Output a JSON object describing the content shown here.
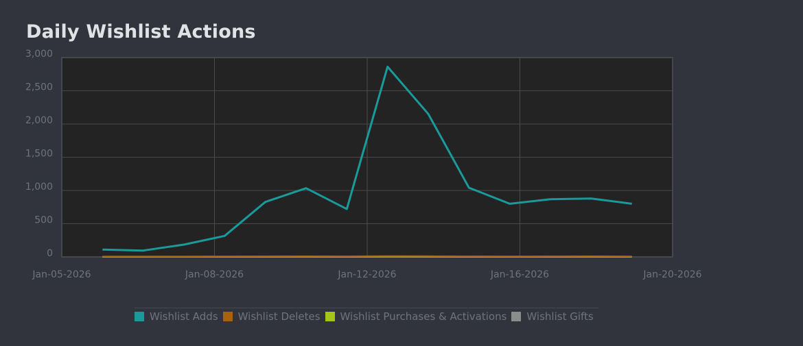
{
  "title": "Daily Wishlist Actions",
  "chart_data": {
    "type": "line",
    "title": "Daily Wishlist Actions",
    "xlabel": "",
    "ylabel": "",
    "x_range": [
      "2026-01-05",
      "2026-01-20"
    ],
    "x_tick_labels": [
      "Jan-05-2026",
      "Jan-08-2026",
      "Jan-12-2026",
      "Jan-16-2026",
      "Jan-20-2026"
    ],
    "ylim": [
      0,
      3000
    ],
    "y_ticks": [
      0,
      500,
      1000,
      1500,
      2000,
      2500,
      3000
    ],
    "y_tick_labels": [
      "0",
      "500",
      "1,000",
      "1,500",
      "2,000",
      "2,500",
      "3,000"
    ],
    "grid": true,
    "legend_position": "bottom",
    "x": [
      "2026-01-06",
      "2026-01-07",
      "2026-01-08",
      "2026-01-09",
      "2026-01-10",
      "2026-01-11",
      "2026-01-12",
      "2026-01-13",
      "2026-01-14",
      "2026-01-15",
      "2026-01-16",
      "2026-01-17",
      "2026-01-18",
      "2026-01-19"
    ],
    "series": [
      {
        "name": "Wishlist Adds",
        "color": "#1a9a9a",
        "values": [
          111,
          96,
          186,
          317,
          828,
          1034,
          721,
          2862,
          2152,
          1041,
          800,
          869,
          879,
          800
        ]
      },
      {
        "name": "Wishlist Deletes",
        "color": "#a8620e",
        "values": [
          8,
          7,
          8,
          9,
          10,
          11,
          10,
          14,
          12,
          10,
          9,
          10,
          11,
          9
        ]
      },
      {
        "name": "Wishlist Purchases & Activations",
        "color": "#a4c416",
        "values": [
          3,
          3,
          4,
          4,
          5,
          5,
          4,
          6,
          5,
          4,
          4,
          4,
          5,
          4
        ]
      },
      {
        "name": "Wishlist Gifts",
        "color": "#8a8c8e",
        "values": [
          0,
          0,
          0,
          0,
          0,
          0,
          0,
          0,
          0,
          0,
          0,
          0,
          0,
          0
        ]
      }
    ]
  }
}
